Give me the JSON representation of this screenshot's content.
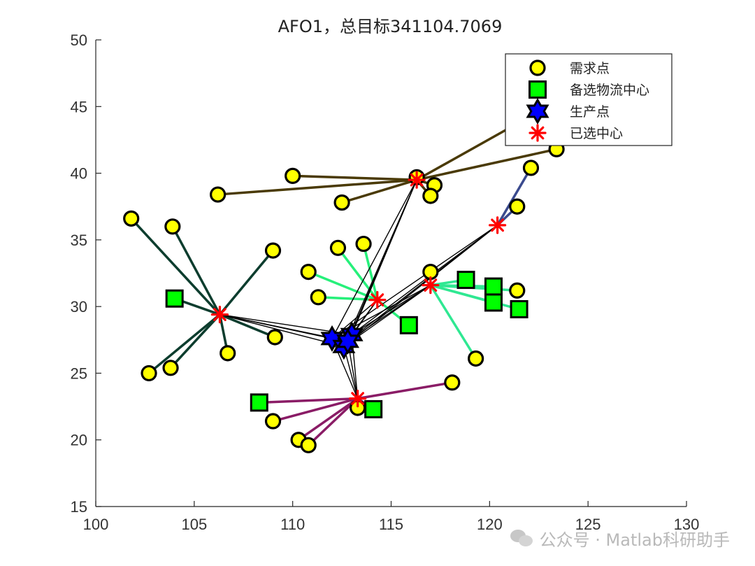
{
  "chart_data": {
    "type": "scatter",
    "title": "AFO1，总目标341104.7069",
    "xlim": [
      100,
      130
    ],
    "ylim": [
      15,
      50
    ],
    "xticks": [
      100,
      105,
      110,
      115,
      120,
      125,
      130
    ],
    "yticks": [
      15,
      20,
      25,
      30,
      35,
      40,
      45,
      50
    ],
    "legend_position": "top-right",
    "legend": [
      {
        "label": "需求点",
        "marker": "circle",
        "color": "#ffff00"
      },
      {
        "label": "备选物流中心",
        "marker": "square",
        "color": "#00ff00"
      },
      {
        "label": "生产点",
        "marker": "hexagram",
        "color": "#0000ff"
      },
      {
        "label": "已选中心",
        "marker": "asterisk",
        "color": "#ff0000"
      }
    ],
    "demand_points": [
      [
        101.8,
        36.6
      ],
      [
        103.9,
        36.0
      ],
      [
        109.0,
        34.2
      ],
      [
        102.7,
        25.0
      ],
      [
        103.8,
        25.4
      ],
      [
        106.7,
        26.5
      ],
      [
        109.1,
        27.7
      ],
      [
        110.0,
        39.8
      ],
      [
        106.2,
        38.4
      ],
      [
        112.5,
        37.8
      ],
      [
        116.3,
        39.7
      ],
      [
        117.2,
        39.1
      ],
      [
        117.0,
        38.3
      ],
      [
        121.5,
        43.8
      ],
      [
        123.4,
        41.8
      ],
      [
        122.1,
        40.4
      ],
      [
        121.4,
        37.5
      ],
      [
        110.8,
        32.6
      ],
      [
        111.3,
        30.7
      ],
      [
        112.3,
        34.4
      ],
      [
        113.6,
        34.7
      ],
      [
        117.0,
        32.6
      ],
      [
        121.4,
        31.2
      ],
      [
        119.3,
        26.1
      ],
      [
        109.0,
        21.4
      ],
      [
        110.3,
        20.0
      ],
      [
        110.8,
        19.6
      ],
      [
        113.3,
        22.4
      ],
      [
        118.1,
        24.3
      ]
    ],
    "candidate_centers": [
      [
        104.0,
        30.6
      ],
      [
        108.3,
        22.8
      ],
      [
        114.1,
        22.3
      ],
      [
        115.9,
        28.6
      ],
      [
        118.8,
        32.0
      ],
      [
        120.2,
        31.5
      ],
      [
        120.2,
        30.3
      ],
      [
        121.5,
        29.8
      ]
    ],
    "production_points": [
      [
        112.0,
        27.6
      ],
      [
        112.6,
        27.0
      ],
      [
        113.0,
        27.9
      ],
      [
        112.8,
        27.4
      ]
    ],
    "selected_centers": [
      {
        "x": 106.3,
        "y": 29.4,
        "color": "#0d3d2e",
        "serves": [
          [
            101.8,
            36.6
          ],
          [
            103.9,
            36.0
          ],
          [
            109.0,
            34.2
          ],
          [
            102.7,
            25.0
          ],
          [
            103.8,
            25.4
          ],
          [
            106.7,
            26.5
          ],
          [
            109.1,
            27.7
          ],
          [
            104.0,
            30.6
          ]
        ]
      },
      {
        "x": 116.3,
        "y": 39.5,
        "color": "#4a3a06",
        "serves": [
          [
            110.0,
            39.8
          ],
          [
            106.2,
            38.4
          ],
          [
            112.5,
            37.8
          ],
          [
            116.3,
            39.7
          ],
          [
            117.2,
            39.1
          ],
          [
            117.0,
            38.3
          ],
          [
            121.5,
            43.8
          ],
          [
            123.4,
            41.8
          ]
        ]
      },
      {
        "x": 120.4,
        "y": 36.1,
        "color": "#3a4a8e",
        "serves": [
          [
            122.1,
            40.4
          ],
          [
            121.4,
            37.5
          ]
        ]
      },
      {
        "x": 114.3,
        "y": 30.5,
        "color": "#26f07a",
        "serves": [
          [
            110.8,
            32.6
          ],
          [
            111.3,
            30.7
          ],
          [
            112.3,
            34.4
          ],
          [
            113.6,
            34.7
          ],
          [
            115.9,
            28.6
          ]
        ]
      },
      {
        "x": 117.0,
        "y": 31.6,
        "color": "#2fe892",
        "serves": [
          [
            117.0,
            32.6
          ],
          [
            121.4,
            31.2
          ],
          [
            119.3,
            26.1
          ],
          [
            118.8,
            32.0
          ],
          [
            120.2,
            31.5
          ],
          [
            120.2,
            30.3
          ],
          [
            121.5,
            29.8
          ]
        ]
      },
      {
        "x": 113.3,
        "y": 23.1,
        "color": "#8a1c66",
        "serves": [
          [
            108.3,
            22.8
          ],
          [
            109.0,
            21.4
          ],
          [
            110.3,
            20.0
          ],
          [
            110.8,
            19.6
          ],
          [
            113.3,
            22.4
          ],
          [
            114.1,
            22.3
          ],
          [
            118.1,
            24.3
          ]
        ]
      }
    ]
  },
  "watermark": {
    "text": "公众号 · Matlab科研助手",
    "icon": "wechat-icon"
  }
}
